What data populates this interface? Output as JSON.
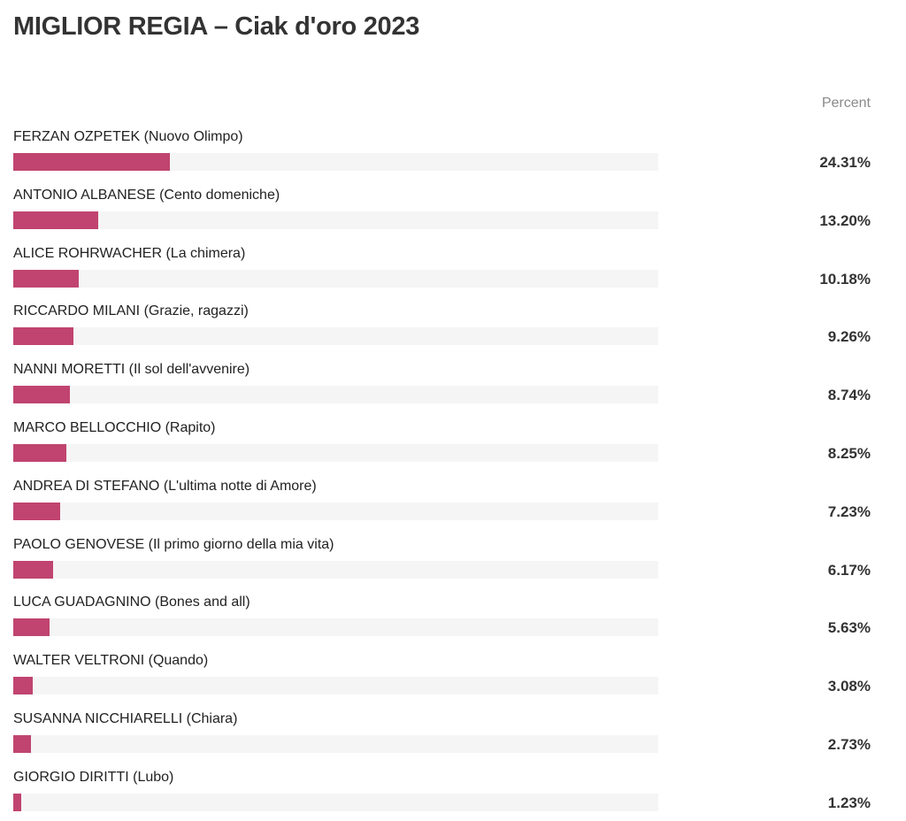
{
  "chart_data": {
    "type": "bar",
    "orientation": "horizontal",
    "title": "MIGLIOR REGIA – Ciak d'oro 2023",
    "value_header": "Percent",
    "bar_color": "#c0446f",
    "track_color": "#f5f5f5",
    "xlim": [
      0,
      100
    ],
    "categories": [
      "FERZAN OZPETEK (Nuovo Olimpo)",
      "ANTONIO ALBANESE (Cento domeniche)",
      "ALICE ROHRWACHER (La chimera)",
      "RICCARDO MILANI (Grazie, ragazzi)",
      "NANNI MORETTI (Il sol dell'avvenire)",
      "MARCO BELLOCCHIO (Rapito)",
      "ANDREA DI STEFANO (L'ultima notte di Amore)",
      "PAOLO GENOVESE (Il primo giorno della mia vita)",
      "LUCA GUADAGNINO (Bones and all)",
      "WALTER VELTRONI (Quando)",
      "SUSANNA NICCHIARELLI (Chiara)",
      "GIORGIO DIRITTI (Lubo)"
    ],
    "values": [
      24.31,
      13.2,
      10.18,
      9.26,
      8.74,
      8.25,
      7.23,
      6.17,
      5.63,
      3.08,
      2.73,
      1.23
    ],
    "value_labels": [
      "24.31%",
      "13.20%",
      "10.18%",
      "9.26%",
      "8.74%",
      "8.25%",
      "7.23%",
      "6.17%",
      "5.63%",
      "3.08%",
      "2.73%",
      "1.23%"
    ]
  }
}
